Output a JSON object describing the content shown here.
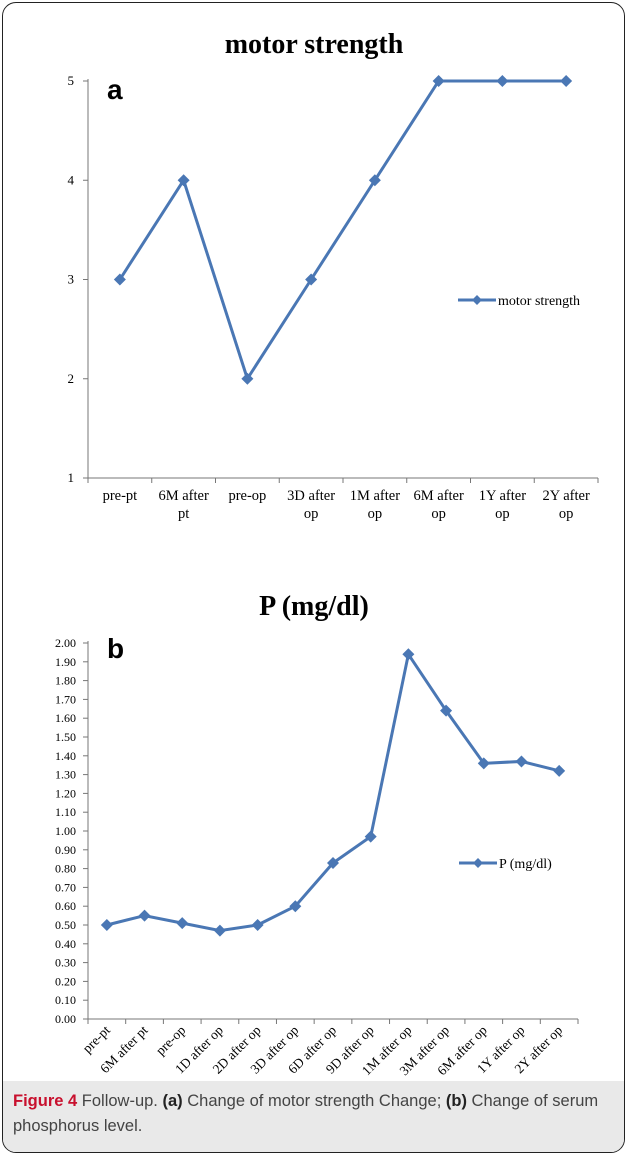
{
  "chart_data": [
    {
      "type": "line",
      "panel_label": "a",
      "title": "motor strength",
      "categories": [
        [
          "pre-pt"
        ],
        [
          "6M after",
          "pt"
        ],
        [
          "pre-op"
        ],
        [
          "3D after",
          "op"
        ],
        [
          "1M after",
          "op"
        ],
        [
          "6M after",
          "op"
        ],
        [
          "1Y after",
          "op"
        ],
        [
          "2Y after",
          "op"
        ]
      ],
      "series": [
        {
          "name": "motor strength",
          "values": [
            3,
            4,
            2,
            3,
            4,
            5,
            5,
            5
          ]
        }
      ],
      "ylim": [
        1,
        5
      ],
      "yticks": [
        "1",
        "2",
        "3",
        "4",
        "5"
      ],
      "legend": "right",
      "color": "#4a77b4"
    },
    {
      "type": "line",
      "panel_label": "b",
      "title": "P (mg/dl)",
      "categories": [
        "pre-pt",
        "6M after pt",
        "pre-op",
        "1D after op",
        "2D after op",
        "3D after op",
        "6D after op",
        "9D after op",
        "1M after op",
        "3M after op",
        "6M after op",
        "1Y after op",
        "2Y after op"
      ],
      "series": [
        {
          "name": "P (mg/dl)",
          "values": [
            0.5,
            0.55,
            0.51,
            0.47,
            0.5,
            0.6,
            0.83,
            0.97,
            1.94,
            1.64,
            1.36,
            1.37,
            1.32
          ]
        }
      ],
      "ylim": [
        0,
        2.0
      ],
      "yticks": [
        "0.00",
        "0.10",
        "0.20",
        "0.30",
        "0.40",
        "0.50",
        "0.60",
        "0.70",
        "0.80",
        "0.90",
        "1.00",
        "1.10",
        "1.20",
        "1.30",
        "1.40",
        "1.50",
        "1.60",
        "1.70",
        "1.80",
        "1.90",
        "2.00"
      ],
      "legend": "right",
      "color": "#4a77b4"
    }
  ],
  "caption": {
    "figure_label": "Figure 4",
    "text_1": " Follow-up. ",
    "part_a": "(a)",
    "text_2": " Change of motor strength Change; ",
    "part_b": "(b)",
    "text_3": " Change of serum phosphorus level."
  }
}
